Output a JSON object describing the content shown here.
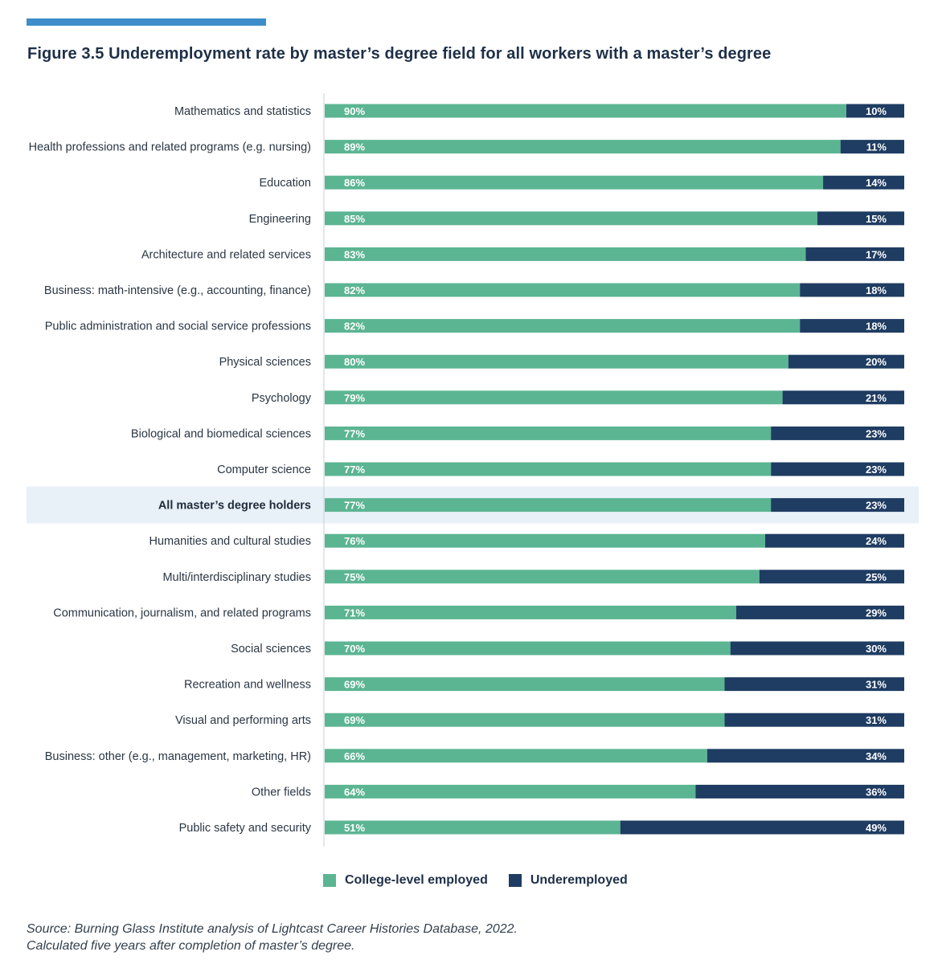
{
  "figure": {
    "title": "Figure 3.5  Underemployment rate by master’s degree field for all workers with a master’s degree"
  },
  "colors": {
    "employed": "#5bb592",
    "underemployed": "#1f3c62",
    "highlight": "#e8f0f8",
    "accent_rule": "#3c8dc9"
  },
  "legend": {
    "employed_label": "College-level employed",
    "underemployed_label": "Underemployed"
  },
  "source": {
    "line1": "Source: Burning Glass Institute analysis of Lightcast Career Histories Database, 2022.",
    "line2": "Calculated five years after completion of master’s degree."
  },
  "chart_data": {
    "type": "bar",
    "orientation": "horizontal",
    "stacked": true,
    "title": "Underemployment rate by master’s degree field for all workers with a master’s degree",
    "xlim": [
      0,
      100
    ],
    "categories": [
      "Mathematics and statistics",
      "Health professions and related programs (e.g. nursing)",
      "Education",
      "Engineering",
      "Architecture and related services",
      "Business: math-intensive (e.g., accounting, finance)",
      "Public administration and social service professions",
      "Physical sciences",
      "Psychology",
      "Biological and biomedical sciences",
      "Computer science",
      "All master’s degree holders",
      "Humanities and cultural studies",
      "Multi/interdisciplinary studies",
      "Communication, journalism, and related programs",
      "Social sciences",
      "Recreation and wellness",
      "Visual and performing arts",
      "Business: other (e.g., management, marketing, HR)",
      "Other fields",
      "Public safety and security"
    ],
    "highlighted_category": "All master’s degree holders",
    "series": [
      {
        "name": "College-level employed",
        "values": [
          90,
          89,
          86,
          85,
          83,
          82,
          82,
          80,
          79,
          77,
          77,
          77,
          76,
          75,
          71,
          70,
          69,
          69,
          66,
          64,
          51
        ],
        "labels": [
          "90%",
          "89%",
          "86%",
          "85%",
          "83%",
          "82%",
          "82%",
          "80%",
          "79%",
          "77%",
          "77%",
          "77%",
          "76%",
          "75%",
          "71%",
          "70%",
          "69%",
          "69%",
          "66%",
          "64%",
          "51%"
        ]
      },
      {
        "name": "Underemployed",
        "values": [
          10,
          11,
          14,
          15,
          17,
          18,
          18,
          20,
          21,
          23,
          23,
          23,
          24,
          25,
          29,
          30,
          31,
          31,
          34,
          36,
          49
        ],
        "labels": [
          "10%",
          "11%",
          "14%",
          "15%",
          "17%",
          "18%",
          "18%",
          "20%",
          "21%",
          "23%",
          "23%",
          "23%",
          "24%",
          "25%",
          "29%",
          "30%",
          "31%",
          "31%",
          "34%",
          "36%",
          "49%"
        ]
      }
    ],
    "legend_position": "bottom"
  }
}
